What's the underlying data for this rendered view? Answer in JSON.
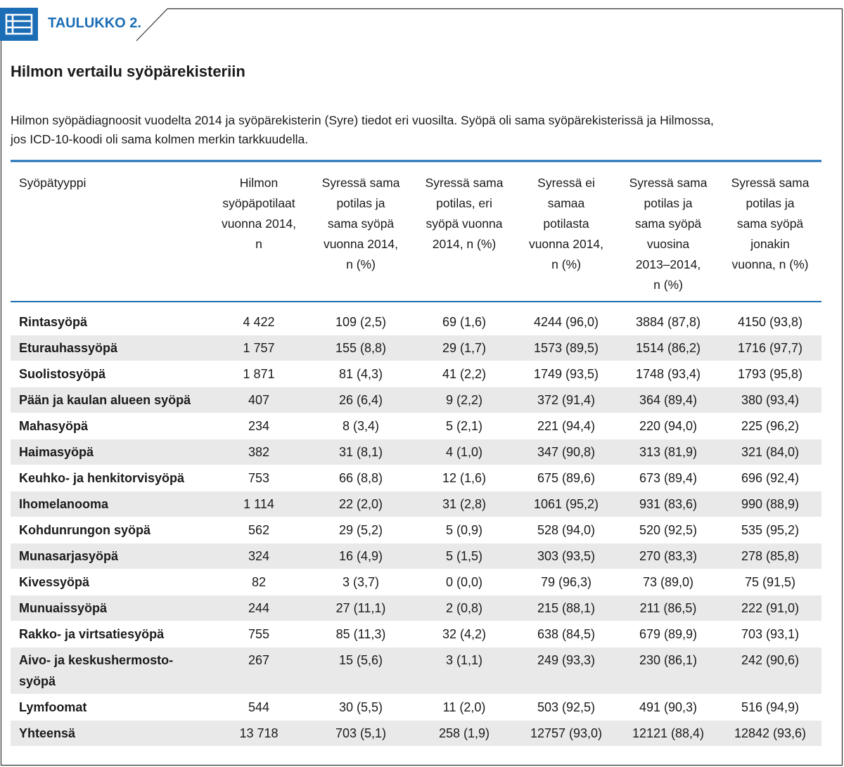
{
  "header": {
    "tab": "TAULUKKO 2.",
    "title": "Hilmon vertailu syöpärekisteriin",
    "description": [
      "Hilmon syöpädiagnoosit vuodelta 2014 ja syöpärekisterin (Syre) tiedot eri vuosilta. Syöpä oli sama syöpärekisterissä ja Hilmossa,",
      "jos ICD-10-koodi oli sama kolmen merkin tarkkuudella."
    ]
  },
  "table": {
    "columns": [
      [
        "Syöpätyyppi"
      ],
      [
        "Hilmon",
        "syöpäpotilaat",
        "vuonna 2014,",
        "n"
      ],
      [
        "Syressä sama",
        "potilas ja",
        "sama syöpä",
        "vuonna 2014,",
        "n (%)"
      ],
      [
        "Syressä sama",
        "potilas, eri",
        "syöpä vuonna",
        "2014, n (%)"
      ],
      [
        "Syressä ei",
        "samaa",
        "potilasta",
        "vuonna 2014,",
        "n (%)"
      ],
      [
        "Syressä sama",
        "potilas ja",
        "sama syöpä",
        "vuosina",
        "2013–2014,",
        "n (%)"
      ],
      [
        "Syressä sama",
        "potilas ja",
        "sama syöpä",
        "jonakin",
        "vuonna, n (%)"
      ]
    ],
    "rows": [
      [
        "Rintasyöpä",
        "4 422",
        "109 (2,5)",
        "69 (1,6)",
        "4244 (96,0)",
        "3884 (87,8)",
        "4150 (93,8)"
      ],
      [
        "Eturauhassyöpä",
        "1 757",
        "155 (8,8)",
        "29 (1,7)",
        "1573 (89,5)",
        "1514 (86,2)",
        "1716 (97,7)"
      ],
      [
        "Suolistosyöpä",
        "1 871",
        "81 (4,3)",
        "41 (2,2)",
        "1749 (93,5)",
        "1748 (93,4)",
        "1793 (95,8)"
      ],
      [
        "Pään ja kaulan alueen syöpä",
        "407",
        "26 (6,4)",
        "9 (2,2)",
        "372 (91,4)",
        "364 (89,4)",
        "380 (93,4)"
      ],
      [
        "Mahasyöpä",
        "234",
        "8 (3,4)",
        "5 (2,1)",
        "221 (94,4)",
        "220 (94,0)",
        "225 (96,2)"
      ],
      [
        "Haimasyöpä",
        "382",
        "31 (8,1)",
        "4 (1,0)",
        "347 (90,8)",
        "313 (81,9)",
        "321 (84,0)"
      ],
      [
        "Keuhko- ja henkitorvisyöpä",
        "753",
        "66 (8,8)",
        "12 (1,6)",
        "675 (89,6)",
        "673 (89,4)",
        "696 (92,4)"
      ],
      [
        "Ihomelanooma",
        "1 114",
        "22 (2,0)",
        "31 (2,8)",
        "1061 (95,2)",
        "931 (83,6)",
        "990 (88,9)"
      ],
      [
        "Kohdunrungon syöpä",
        "562",
        "29 (5,2)",
        "5 (0,9)",
        "528 (94,0)",
        "520 (92,5)",
        "535 (95,2)"
      ],
      [
        "Munasarjasyöpä",
        "324",
        "16 (4,9)",
        "5 (1,5)",
        "303 (93,5)",
        "270 (83,3)",
        "278 (85,8)"
      ],
      [
        "Kivessyöpä",
        "82",
        "3 (3,7)",
        "0 (0,0)",
        "79 (96,3)",
        "73 (89,0)",
        "75 (91,5)"
      ],
      [
        "Munuaissyöpä",
        "244",
        "27 (11,1)",
        "2 (0,8)",
        "215 (88,1)",
        "211 (86,5)",
        "222 (91,0)"
      ],
      [
        "Rakko- ja virtsatiesyöpä",
        "755",
        "85 (11,3)",
        "32 (4,2)",
        "638 (84,5)",
        "679 (89,9)",
        "703 (93,1)"
      ],
      [
        [
          "Aivo- ja keskushermosto-",
          "syöpä"
        ],
        "267",
        "15 (5,6)",
        "3 (1,1)",
        "249 (93,3)",
        "230 (86,1)",
        "242 (90,6)"
      ],
      [
        "Lymfoomat",
        "544",
        "30 (5,5)",
        "11 (2,0)",
        "503 (92,5)",
        "491 (90,3)",
        "516 (94,9)"
      ],
      [
        "Yhteensä",
        "13 718",
        "703 (5,1)",
        "258 (1,9)",
        "12757 (93,0)",
        "12121 (88,4)",
        "12842 (93,6)"
      ]
    ]
  }
}
